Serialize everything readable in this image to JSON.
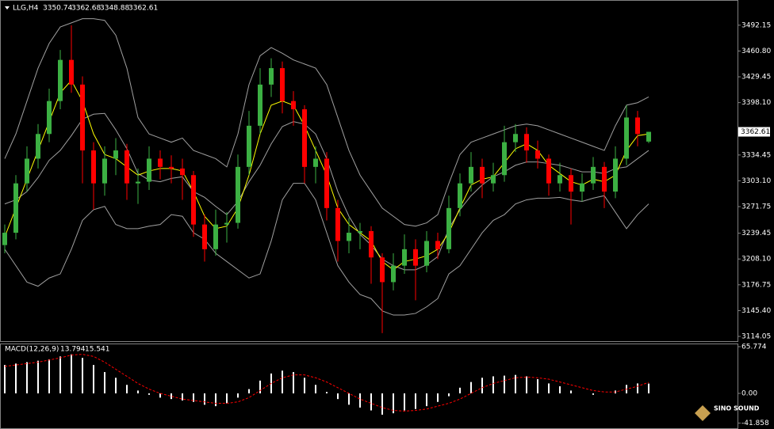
{
  "watermark": "SINO SOUND",
  "chart_data": [
    {
      "type": "candlestick",
      "title": "LLG,H4",
      "up_color": "#3cb043",
      "down_color": "#ff0000",
      "open": [
        3225,
        3240,
        3300,
        3330,
        3360,
        3400,
        3450,
        3420,
        3340,
        3300,
        3330,
        3340,
        3300,
        3302,
        3330,
        3320,
        3318,
        3310,
        3250,
        3220,
        3250,
        3252,
        3320,
        3370,
        3420,
        3440,
        3400,
        3390,
        3320,
        3330,
        3270,
        3230,
        3240,
        3242,
        3210,
        3180,
        3200,
        3220,
        3200,
        3230,
        3220,
        3270,
        3300,
        3320,
        3300,
        3310,
        3350,
        3360,
        3340,
        3330,
        3300,
        3310,
        3290,
        3300,
        3320,
        3290,
        3330,
        3380,
        3350.74
      ],
      "high": [
        3250,
        3310,
        3345,
        3372,
        3415,
        3462,
        3492,
        3430,
        3350,
        3345,
        3355,
        3348,
        3318,
        3345,
        3340,
        3334,
        3330,
        3315,
        3262,
        3268,
        3265,
        3335,
        3388,
        3440,
        3452,
        3448,
        3412,
        3395,
        3345,
        3338,
        3280,
        3258,
        3252,
        3248,
        3215,
        3215,
        3238,
        3232,
        3242,
        3240,
        3285,
        3312,
        3338,
        3330,
        3325,
        3370,
        3372,
        3368,
        3352,
        3335,
        3325,
        3318,
        3312,
        3332,
        3326,
        3345,
        3395,
        3388,
        3362.68
      ],
      "low": [
        3215,
        3232,
        3290,
        3318,
        3350,
        3390,
        3410,
        3300,
        3268,
        3285,
        3310,
        3280,
        3275,
        3292,
        3305,
        3300,
        3280,
        3235,
        3205,
        3212,
        3228,
        3245,
        3310,
        3360,
        3405,
        3385,
        3370,
        3300,
        3300,
        3255,
        3205,
        3215,
        3220,
        3178,
        3118,
        3170,
        3190,
        3158,
        3192,
        3208,
        3215,
        3260,
        3290,
        3282,
        3290,
        3302,
        3338,
        3325,
        3318,
        3285,
        3290,
        3250,
        3278,
        3292,
        3270,
        3282,
        3322,
        3345,
        3348.88
      ],
      "close": [
        3240,
        3300,
        3330,
        3360,
        3400,
        3450,
        3420,
        3340,
        3300,
        3330,
        3340,
        3300,
        3302,
        3330,
        3320,
        3318,
        3310,
        3250,
        3220,
        3250,
        3252,
        3320,
        3370,
        3420,
        3440,
        3400,
        3390,
        3320,
        3330,
        3270,
        3230,
        3240,
        3242,
        3210,
        3180,
        3200,
        3220,
        3200,
        3230,
        3220,
        3270,
        3300,
        3320,
        3300,
        3310,
        3350,
        3360,
        3340,
        3330,
        3300,
        3310,
        3290,
        3300,
        3320,
        3290,
        3330,
        3380,
        3360,
        3362.61
      ],
      "series": [
        {
          "color": "#a0a0a0",
          "values": [
            3330,
            3360,
            3400,
            3440,
            3470,
            3490,
            3495,
            3500,
            3500,
            3498,
            3480,
            3440,
            3380,
            3360,
            3355,
            3350,
            3355,
            3340,
            3335,
            3330,
            3320,
            3360,
            3420,
            3455,
            3465,
            3458,
            3450,
            3445,
            3440,
            3420,
            3380,
            3340,
            3310,
            3290,
            3270,
            3260,
            3250,
            3248,
            3252,
            3262,
            3300,
            3335,
            3350,
            3355,
            3360,
            3365,
            3370,
            3372,
            3370,
            3365,
            3360,
            3355,
            3350,
            3345,
            3340,
            3370,
            3395,
            3398,
            3405
          ]
        },
        {
          "color": "#a0a0a0",
          "values": [
            3275,
            3280,
            3290,
            3307,
            3328,
            3340,
            3358,
            3378,
            3384,
            3385,
            3365,
            3342,
            3312,
            3304,
            3302,
            3306,
            3308,
            3290,
            3283,
            3272,
            3262,
            3278,
            3302,
            3322,
            3348,
            3369,
            3375,
            3372,
            3360,
            3330,
            3290,
            3260,
            3238,
            3225,
            3208,
            3200,
            3195,
            3195,
            3201,
            3211,
            3245,
            3268,
            3285,
            3298,
            3308,
            3314,
            3322,
            3326,
            3326,
            3324,
            3322,
            3318,
            3314,
            3314,
            3312,
            3318,
            3320,
            3330,
            3340
          ]
        },
        {
          "color": "#a0a0a0",
          "values": [
            3220,
            3200,
            3180,
            3175,
            3185,
            3190,
            3220,
            3255,
            3268,
            3272,
            3250,
            3245,
            3245,
            3248,
            3250,
            3262,
            3260,
            3240,
            3232,
            3215,
            3205,
            3195,
            3185,
            3190,
            3230,
            3280,
            3300,
            3300,
            3280,
            3240,
            3200,
            3180,
            3165,
            3160,
            3145,
            3140,
            3140,
            3142,
            3150,
            3160,
            3190,
            3200,
            3220,
            3240,
            3255,
            3262,
            3275,
            3280,
            3282,
            3282,
            3283,
            3280,
            3278,
            3282,
            3285,
            3265,
            3245,
            3262,
            3275
          ]
        },
        {
          "color": "#ffff00",
          "values": [
            3235,
            3270,
            3305,
            3340,
            3375,
            3410,
            3425,
            3400,
            3360,
            3335,
            3330,
            3320,
            3310,
            3315,
            3318,
            3318,
            3315,
            3290,
            3260,
            3245,
            3248,
            3270,
            3310,
            3360,
            3395,
            3400,
            3395,
            3370,
            3340,
            3310,
            3270,
            3250,
            3240,
            3230,
            3205,
            3195,
            3205,
            3208,
            3212,
            3220,
            3240,
            3270,
            3298,
            3305,
            3308,
            3325,
            3342,
            3348,
            3340,
            3322,
            3312,
            3302,
            3298,
            3305,
            3302,
            3310,
            3340,
            3358,
            3360
          ]
        }
      ],
      "ylim": [
        3108.3,
        3521.8
      ],
      "yticks": [
        3492.15,
        {
          "value": 3460.8,
          "label": "3460.80"
        },
        3429.45,
        {
          "value": 3398.1,
          "label": "3398.10"
        },
        3334.45,
        {
          "value": 3303.1,
          "label": "3303.10"
        },
        3271.75,
        3239.45,
        {
          "value": 3208.1,
          "label": "3208.10"
        },
        3176.75,
        {
          "value": 3145.4,
          "label": "3145.40"
        },
        3114.05
      ]
    },
    {
      "type": "macd",
      "title": "MACD(12,26,9)",
      "series": [
        {
          "kind": "bar",
          "color": "#ffffff",
          "values": [
            40,
            42,
            44,
            46,
            48,
            52,
            55,
            50,
            40,
            30,
            22,
            12,
            4,
            -2,
            -6,
            -8,
            -10,
            -12,
            -16,
            -18,
            -14,
            -6,
            6,
            18,
            28,
            32,
            30,
            22,
            12,
            2,
            -8,
            -16,
            -20,
            -24,
            -30,
            -28,
            -24,
            -22,
            -18,
            -12,
            -4,
            8,
            16,
            22,
            24,
            25,
            26,
            24,
            20,
            14,
            10,
            4,
            0,
            -2,
            0,
            4,
            12,
            14,
            13.794
          ]
        },
        {
          "kind": "line",
          "line_style": "dashed",
          "color": "#ff0000",
          "values": [
            38,
            40,
            42,
            44,
            47,
            50,
            54,
            55,
            52,
            44,
            34,
            24,
            14,
            6,
            0,
            -4,
            -8,
            -10,
            -12,
            -14,
            -14,
            -12,
            -6,
            4,
            14,
            22,
            26,
            26,
            22,
            16,
            8,
            0,
            -8,
            -14,
            -20,
            -24,
            -25,
            -24,
            -22,
            -18,
            -14,
            -8,
            0,
            8,
            14,
            18,
            22,
            23,
            22,
            20,
            16,
            12,
            8,
            4,
            2,
            2,
            6,
            10,
            15.541
          ]
        }
      ],
      "ylim": [
        -49.05,
        69.1
      ],
      "yticks": [
        65.774,
        {
          "value": 0,
          "label": "0.00"
        },
        -41.858
      ]
    }
  ]
}
